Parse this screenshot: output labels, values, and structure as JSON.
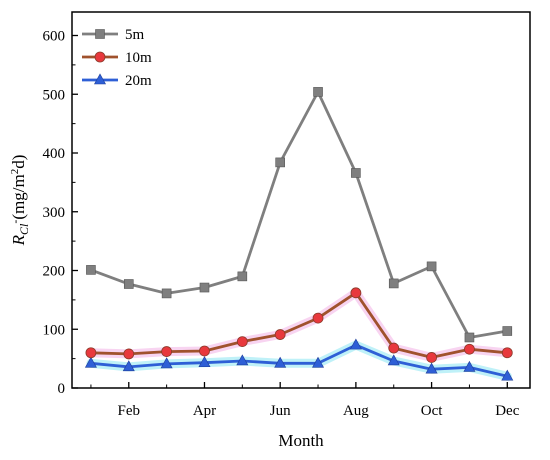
{
  "chart_data": {
    "type": "line",
    "xlabel": "Month",
    "ylabel": "R_Cl-(mg/m²d)",
    "ylabel_parts": {
      "symbol": "R",
      "subscript": "Cl",
      "superscript": "-",
      "unit": "(mg/m",
      "unit_sup": "2",
      "unit_end": "d)"
    },
    "x": [
      1,
      2,
      3,
      4,
      5,
      6,
      7,
      8,
      9,
      10,
      11,
      12
    ],
    "xlim": [
      0.5,
      12.6
    ],
    "ylim": [
      0,
      640
    ],
    "x_ticks": [
      2,
      4,
      6,
      8,
      10,
      12
    ],
    "x_tick_labels": [
      "Feb",
      "Apr",
      "Jun",
      "Aug",
      "Oct",
      "Dec"
    ],
    "y_ticks": [
      0,
      100,
      200,
      300,
      400,
      500,
      600
    ],
    "y_tick_labels": [
      "0",
      "100",
      "200",
      "300",
      "400",
      "500",
      "600"
    ],
    "legend_position": "top-left",
    "grid": false,
    "series": [
      {
        "name": "5m",
        "color": "#7f7f7f",
        "marker": "square",
        "values": [
          201,
          177,
          161,
          171,
          190,
          384,
          504,
          366,
          178,
          207,
          86,
          97
        ]
      },
      {
        "name": "10m",
        "color": "#e8383d",
        "line_color": "#a0522d",
        "marker": "circle",
        "values": [
          60,
          58,
          62,
          63,
          79,
          91,
          119,
          162,
          68,
          52,
          66,
          60
        ]
      },
      {
        "name": "20m",
        "color": "#2e5fd6",
        "marker": "triangle",
        "values": [
          42,
          36,
          41,
          43,
          46,
          42,
          42,
          73,
          46,
          32,
          35,
          20
        ]
      }
    ]
  }
}
